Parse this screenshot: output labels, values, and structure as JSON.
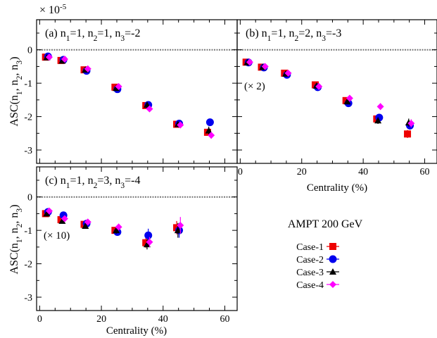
{
  "chart_data": {
    "type": "scatter",
    "shared": {
      "ylabel_base": "ASC(n",
      "ylabel_parts": [
        "1",
        ", n",
        "2",
        ", n",
        "3",
        ")"
      ],
      "xlabel": "Centrality (%)",
      "exponent_label": "× 10",
      "exponent_power": "-5",
      "x_ticks": [
        "0",
        "20",
        "40",
        "60"
      ],
      "y_ticks": [
        "0",
        "-1",
        "-2",
        "-3"
      ],
      "xlim": [
        -1,
        64
      ],
      "ylim": [
        -3.4,
        0.9
      ],
      "legend_title": "AMPT 200 GeV",
      "series_styles": [
        {
          "name": "Case-1",
          "color": "#ee0000",
          "marker": "square"
        },
        {
          "name": "Case-2",
          "color": "#0000ee",
          "marker": "circle"
        },
        {
          "name": "Case-3",
          "color": "#000000",
          "marker": "triangle"
        },
        {
          "name": "Case-4",
          "color": "#ff00ff",
          "marker": "diamond"
        }
      ]
    },
    "panels": [
      {
        "id": "a",
        "label_prefix": "(a)",
        "label_rest": "n1=1, n2=1, n3=-2",
        "scale_note": "",
        "x": [
          2.5,
          7.5,
          15,
          25,
          35,
          45,
          55
        ],
        "series": [
          {
            "name": "Case-1",
            "values": [
              -0.22,
              -0.32,
              -0.6,
              -1.12,
              -1.67,
              -2.23,
              -2.47
            ],
            "errors": [
              0.04,
              0.04,
              0.05,
              0.06,
              0.07,
              0.08,
              0.1
            ]
          },
          {
            "name": "Case-2",
            "values": [
              -0.2,
              -0.3,
              -0.63,
              -1.18,
              -1.65,
              -2.21,
              -2.17
            ],
            "errors": [
              0.04,
              0.04,
              0.05,
              0.06,
              0.07,
              0.08,
              0.1
            ]
          },
          {
            "name": "Case-3",
            "values": [
              -0.23,
              -0.33,
              -0.6,
              -1.15,
              -1.65,
              -2.23,
              -2.42
            ],
            "errors": [
              0.04,
              0.04,
              0.05,
              0.06,
              0.07,
              0.08,
              0.12
            ]
          },
          {
            "name": "Case-4",
            "values": [
              -0.22,
              -0.28,
              -0.57,
              -1.1,
              -1.77,
              -2.25,
              -2.56
            ],
            "errors": [
              0.04,
              0.04,
              0.05,
              0.06,
              0.07,
              0.08,
              0.1
            ]
          }
        ]
      },
      {
        "id": "b",
        "label_prefix": "(b)",
        "label_rest": "n1=1, n2=2, n3=-3",
        "scale_note": "(× 2)",
        "x": [
          2.5,
          7.5,
          15,
          25,
          35,
          45,
          55
        ],
        "series": [
          {
            "name": "Case-1",
            "values": [
              -0.37,
              -0.52,
              -0.7,
              -1.05,
              -1.52,
              -2.07,
              -2.52
            ],
            "errors": [
              0.04,
              0.04,
              0.05,
              0.06,
              0.08,
              0.1,
              0.12
            ]
          },
          {
            "name": "Case-2",
            "values": [
              -0.38,
              -0.53,
              -0.75,
              -1.12,
              -1.6,
              -2.03,
              -2.27
            ],
            "errors": [
              0.04,
              0.04,
              0.05,
              0.06,
              0.08,
              0.1,
              0.12
            ]
          },
          {
            "name": "Case-3",
            "values": [
              -0.38,
              -0.52,
              -0.72,
              -1.08,
              -1.55,
              -2.12,
              -2.18
            ],
            "errors": [
              0.04,
              0.04,
              0.05,
              0.06,
              0.08,
              0.1,
              0.12
            ]
          },
          {
            "name": "Case-4",
            "values": [
              -0.37,
              -0.5,
              -0.7,
              -1.1,
              -1.45,
              -1.7,
              -2.2
            ],
            "errors": [
              0.04,
              0.04,
              0.05,
              0.06,
              0.08,
              0.1,
              0.12
            ]
          }
        ]
      },
      {
        "id": "c",
        "label_prefix": "(c)",
        "label_rest": "n1=1, n2=3, n3=-4",
        "scale_note": "(× 10)",
        "x": [
          2.5,
          7.5,
          15,
          25,
          35,
          45
        ],
        "series": [
          {
            "name": "Case-1",
            "values": [
              -0.5,
              -0.68,
              -0.82,
              -1.0,
              -1.37,
              -0.92
            ],
            "errors": [
              0.06,
              0.07,
              0.08,
              0.1,
              0.15,
              0.2
            ]
          },
          {
            "name": "Case-2",
            "values": [
              -0.45,
              -0.55,
              -0.8,
              -1.05,
              -1.15,
              -1.0
            ],
            "errors": [
              0.06,
              0.07,
              0.08,
              0.1,
              0.2,
              0.22
            ]
          },
          {
            "name": "Case-3",
            "values": [
              -0.5,
              -0.72,
              -0.87,
              -1.0,
              -1.42,
              -1.0
            ],
            "errors": [
              0.06,
              0.07,
              0.08,
              0.1,
              0.15,
              0.22
            ]
          },
          {
            "name": "Case-4",
            "values": [
              -0.42,
              -0.65,
              -0.75,
              -0.9,
              -1.35,
              -0.85
            ],
            "errors": [
              0.06,
              0.07,
              0.08,
              0.1,
              0.15,
              0.25
            ]
          }
        ]
      }
    ]
  }
}
